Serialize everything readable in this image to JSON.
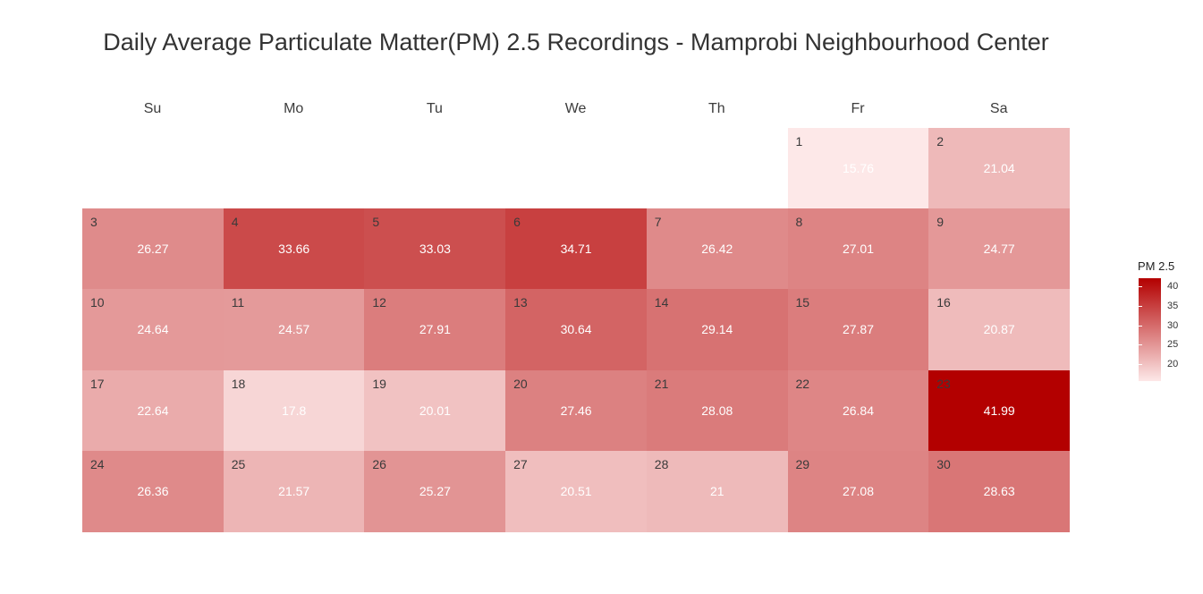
{
  "chart_data": {
    "type": "heatmap",
    "title": "Daily Average Particulate Matter(PM) 2.5 Recordings - Mamprobi Neighbourhood Center",
    "weekdays": [
      "Su",
      "Mo",
      "Tu",
      "We",
      "Th",
      "Fr",
      "Sa"
    ],
    "first_weekday_index": 5,
    "days": [
      {
        "day": "1",
        "value": 15.76
      },
      {
        "day": "2",
        "value": 21.04
      },
      {
        "day": "3",
        "value": 26.27
      },
      {
        "day": "4",
        "value": 33.66
      },
      {
        "day": "5",
        "value": 33.03
      },
      {
        "day": "6",
        "value": 34.71
      },
      {
        "day": "7",
        "value": 26.42
      },
      {
        "day": "8",
        "value": 27.01
      },
      {
        "day": "9",
        "value": 24.77
      },
      {
        "day": "10",
        "value": 24.64
      },
      {
        "day": "11",
        "value": 24.57
      },
      {
        "day": "12",
        "value": 27.91
      },
      {
        "day": "13",
        "value": 30.64
      },
      {
        "day": "14",
        "value": 29.14
      },
      {
        "day": "15",
        "value": 27.87
      },
      {
        "day": "16",
        "value": 20.87
      },
      {
        "day": "17",
        "value": 22.64
      },
      {
        "day": "18",
        "value": 17.8
      },
      {
        "day": "19",
        "value": 20.01
      },
      {
        "day": "20",
        "value": 27.46
      },
      {
        "day": "21",
        "value": 28.08
      },
      {
        "day": "22",
        "value": 26.84
      },
      {
        "day": "23",
        "value": 41.99
      },
      {
        "day": "24",
        "value": 26.36
      },
      {
        "day": "25",
        "value": 21.57
      },
      {
        "day": "26",
        "value": 25.27
      },
      {
        "day": "27",
        "value": 20.51
      },
      {
        "day": "28",
        "value": 21
      },
      {
        "day": "29",
        "value": 27.08
      },
      {
        "day": "30",
        "value": 28.63
      }
    ],
    "legend": {
      "title": "PM 2.5",
      "ticks": [
        "20",
        "25",
        "30",
        "35",
        "40"
      ],
      "range": [
        15.76,
        41.99
      ],
      "position": "right"
    },
    "colors": {
      "low": "#fde8e8",
      "high": "#b30000"
    }
  }
}
